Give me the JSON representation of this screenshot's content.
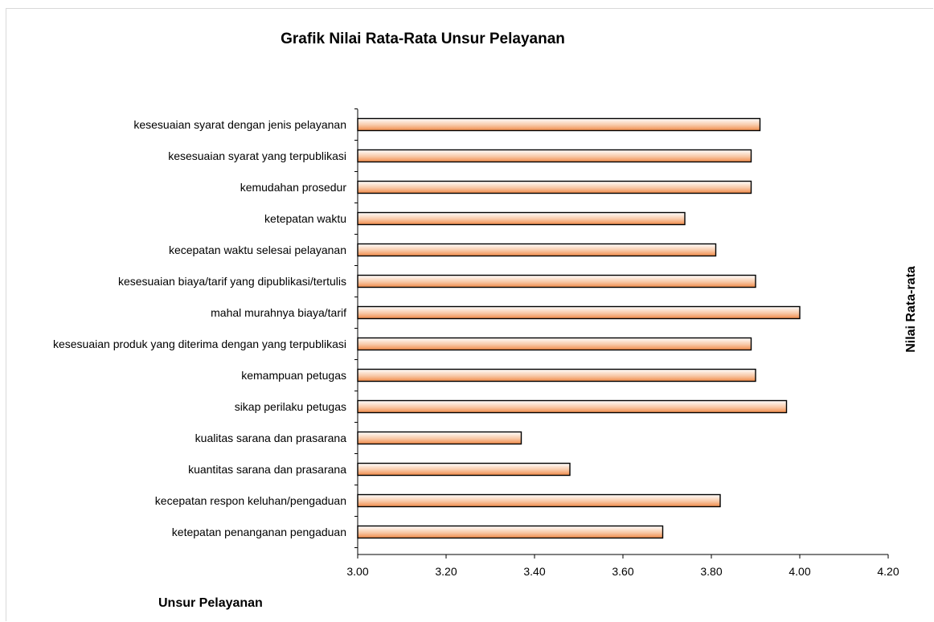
{
  "chart_data": {
    "type": "bar",
    "orientation": "horizontal",
    "title": "Grafik Nilai Rata-Rata Unsur Pelayanan",
    "xlabel": "Nilai Rata-rata",
    "ylabel": "Unsur Pelayanan",
    "xlim": [
      3.0,
      4.2
    ],
    "ticks": [
      "3.00",
      "3.20",
      "3.40",
      "3.60",
      "3.80",
      "4.00",
      "4.20"
    ],
    "tick_values": [
      3.0,
      3.2,
      3.4,
      3.6,
      3.8,
      4.0,
      4.2
    ],
    "grid": false,
    "categories": [
      "kesesuaian syarat dengan jenis pelayanan",
      "kesesuaian syarat yang terpublikasi",
      "kemudahan prosedur",
      "ketepatan waktu",
      "kecepatan waktu selesai pelayanan",
      "kesesuaian biaya/tarif yang dipublikasi/tertulis",
      "mahal murahnya biaya/tarif",
      "kesesuaian produk yang diterima dengan yang terpublikasi",
      "kemampuan petugas",
      "sikap perilaku petugas",
      "kualitas sarana dan prasarana",
      "kuantitas sarana dan prasarana",
      "kecepatan respon keluhan/pengaduan",
      "ketepatan penanganan pengaduan"
    ],
    "values": [
      3.91,
      3.89,
      3.89,
      3.74,
      3.81,
      3.9,
      4.0,
      3.89,
      3.9,
      3.97,
      3.37,
      3.48,
      3.82,
      3.69
    ],
    "bar_color": "#f4a070"
  }
}
